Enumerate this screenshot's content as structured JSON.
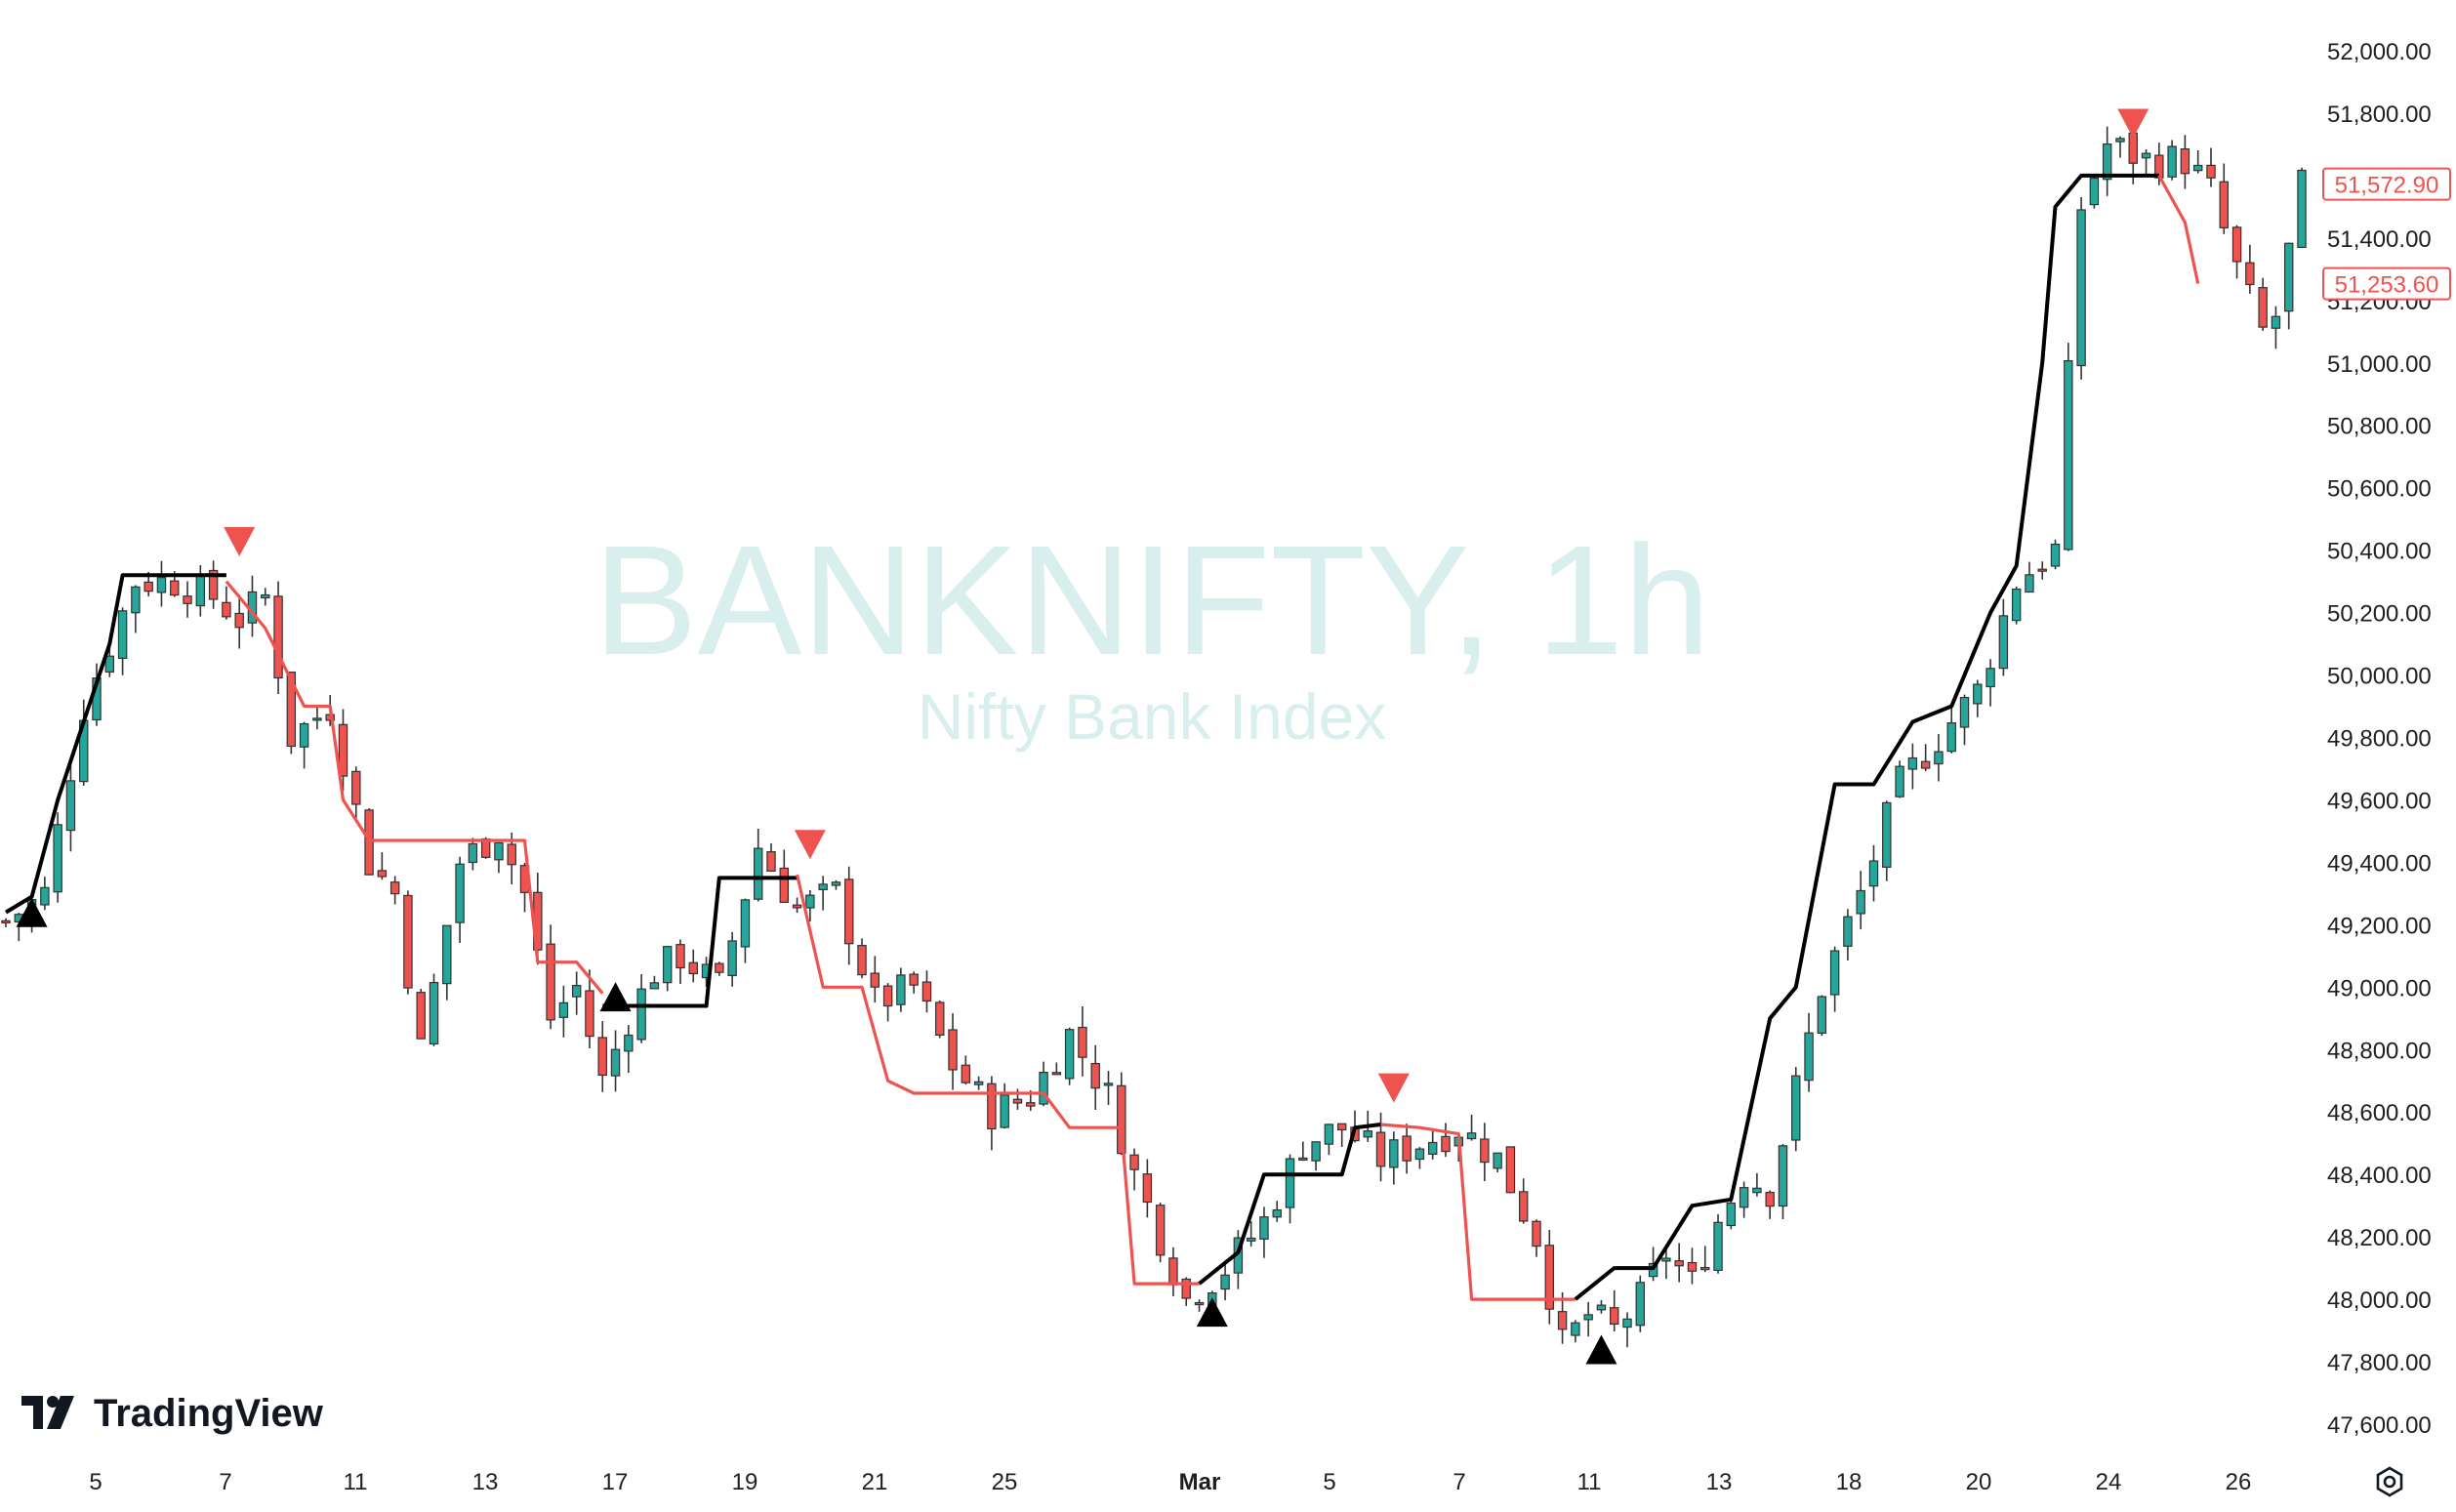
{
  "watermark": {
    "title": "BANKNIFTY, 1h",
    "subtitle": "Nifty Bank Index"
  },
  "brand": {
    "name": "TradingView",
    "icon": "tradingview-logo-icon"
  },
  "settings_icon": "gear-icon",
  "colors": {
    "up": "#26a69a",
    "down": "#ef5350",
    "wick": "#333333",
    "trail_long": "#000000",
    "trail_short": "#ef5350",
    "watermark": "#d9efed",
    "price_label": "#ef5350"
  },
  "chart_data": {
    "type": "candlestick",
    "title": "BANKNIFTY, 1h",
    "subtitle": "Nifty Bank Index",
    "timeframe": "1h",
    "ylim": [
      47550,
      52060
    ],
    "y_ticks": [
      "52,000.00",
      "51,800.00",
      "51,600.00",
      "51,400.00",
      "51,200.00",
      "51,000.00",
      "50,800.00",
      "50,600.00",
      "50,400.00",
      "50,200.00",
      "50,000.00",
      "49,800.00",
      "49,600.00",
      "49,400.00",
      "49,200.00",
      "49,000.00",
      "48,800.00",
      "48,600.00",
      "48,400.00",
      "48,200.00",
      "48,000.00",
      "47,800.00",
      "47,600.00"
    ],
    "x_ticks": [
      "5",
      "7",
      "11",
      "13",
      "17",
      "19",
      "21",
      "25",
      "Mar",
      "5",
      "7",
      "11",
      "13",
      "18",
      "20",
      "24",
      "26"
    ],
    "bar_count": 178,
    "price_labels": [
      "51,572.90",
      "51,253.60"
    ],
    "close_points": [
      [
        0,
        49210
      ],
      [
        3,
        49300
      ],
      [
        6,
        49900
      ],
      [
        10,
        50300
      ],
      [
        13,
        50300
      ],
      [
        16,
        50250
      ],
      [
        18,
        50180
      ],
      [
        20,
        50250
      ],
      [
        22,
        49800
      ],
      [
        25,
        49900
      ],
      [
        28,
        49400
      ],
      [
        30,
        49300
      ],
      [
        32,
        48800
      ],
      [
        35,
        49400
      ],
      [
        38,
        49500
      ],
      [
        40,
        49300
      ],
      [
        42,
        48900
      ],
      [
        44,
        49000
      ],
      [
        46,
        48700
      ],
      [
        48,
        48900
      ],
      [
        50,
        49050
      ],
      [
        52,
        49100
      ],
      [
        55,
        49000
      ],
      [
        58,
        49450
      ],
      [
        61,
        49250
      ],
      [
        64,
        49300
      ],
      [
        67,
        48950
      ],
      [
        70,
        49000
      ],
      [
        73,
        48750
      ],
      [
        76,
        48600
      ],
      [
        79,
        48650
      ],
      [
        82,
        48850
      ],
      [
        85,
        48650
      ],
      [
        87,
        48400
      ],
      [
        89,
        48200
      ],
      [
        91,
        48000
      ],
      [
        94,
        48100
      ],
      [
        97,
        48250
      ],
      [
        100,
        48500
      ],
      [
        103,
        48550
      ],
      [
        106,
        48450
      ],
      [
        109,
        48500
      ],
      [
        112,
        48550
      ],
      [
        115,
        48450
      ],
      [
        118,
        48200
      ],
      [
        120,
        47850
      ],
      [
        122,
        47950
      ],
      [
        124,
        47900
      ],
      [
        126,
        48000
      ],
      [
        128,
        48150
      ],
      [
        130,
        48050
      ],
      [
        132,
        48250
      ],
      [
        134,
        48400
      ],
      [
        136,
        48350
      ],
      [
        140,
        49000
      ],
      [
        143,
        49300
      ],
      [
        146,
        49650
      ],
      [
        149,
        49800
      ],
      [
        152,
        49950
      ],
      [
        155,
        50300
      ],
      [
        158,
        50400
      ],
      [
        160,
        51500
      ],
      [
        162,
        51700
      ],
      [
        165,
        51650
      ],
      [
        168,
        51650
      ],
      [
        170,
        51550
      ],
      [
        172,
        51300
      ],
      [
        174,
        51100
      ],
      [
        175,
        51150
      ],
      [
        177,
        51560
      ]
    ],
    "trail_segments": [
      {
        "trend": "up",
        "points": [
          [
            0,
            49240
          ],
          [
            2,
            49290
          ],
          [
            4,
            49600
          ],
          [
            6,
            49850
          ],
          [
            8,
            50100
          ],
          [
            9,
            50320
          ],
          [
            17,
            50320
          ]
        ]
      },
      {
        "trend": "down",
        "points": [
          [
            17,
            50300
          ],
          [
            20,
            50150
          ],
          [
            23,
            49900
          ],
          [
            25,
            49900
          ],
          [
            26,
            49600
          ],
          [
            28,
            49470
          ],
          [
            33,
            49470
          ],
          [
            37,
            49470
          ],
          [
            40,
            49470
          ],
          [
            41,
            49080
          ],
          [
            44,
            49080
          ],
          [
            46,
            48980
          ]
        ]
      },
      {
        "trend": "up",
        "points": [
          [
            46,
            48940
          ],
          [
            54,
            48940
          ],
          [
            55,
            49350
          ],
          [
            61,
            49350
          ]
        ]
      },
      {
        "trend": "down",
        "points": [
          [
            61,
            49360
          ],
          [
            63,
            49000
          ],
          [
            66,
            49000
          ],
          [
            68,
            48700
          ],
          [
            70,
            48660
          ],
          [
            80,
            48660
          ],
          [
            82,
            48550
          ],
          [
            86,
            48550
          ],
          [
            87,
            48050
          ],
          [
            92,
            48050
          ]
        ]
      },
      {
        "trend": "up",
        "points": [
          [
            92,
            48050
          ],
          [
            95,
            48150
          ],
          [
            97,
            48400
          ],
          [
            103,
            48400
          ],
          [
            104,
            48550
          ],
          [
            106,
            48560
          ]
        ]
      },
      {
        "trend": "down",
        "points": [
          [
            106,
            48560
          ],
          [
            109,
            48550
          ],
          [
            112,
            48530
          ],
          [
            113,
            48000
          ],
          [
            121,
            48000
          ]
        ]
      },
      {
        "trend": "up",
        "points": [
          [
            121,
            48000
          ],
          [
            124,
            48100
          ],
          [
            127,
            48100
          ],
          [
            130,
            48300
          ],
          [
            133,
            48320
          ],
          [
            136,
            48900
          ],
          [
            138,
            49000
          ],
          [
            141,
            49650
          ],
          [
            144,
            49650
          ],
          [
            147,
            49850
          ],
          [
            150,
            49900
          ],
          [
            153,
            50200
          ],
          [
            155,
            50350
          ],
          [
            157,
            51000
          ],
          [
            158,
            51500
          ],
          [
            160,
            51600
          ],
          [
            166,
            51600
          ]
        ]
      },
      {
        "trend": "down",
        "points": [
          [
            166,
            51600
          ],
          [
            168,
            51450
          ],
          [
            169,
            51254
          ]
        ]
      }
    ],
    "signals": [
      {
        "type": "buy",
        "bar": 2,
        "price": 49330
      },
      {
        "type": "sell",
        "bar": 18,
        "price": 50330
      },
      {
        "type": "buy",
        "bar": 47,
        "price": 49060
      },
      {
        "type": "sell",
        "bar": 62,
        "price": 49360
      },
      {
        "type": "buy",
        "bar": 93,
        "price": 48050
      },
      {
        "type": "sell",
        "bar": 107,
        "price": 48580
      },
      {
        "type": "buy",
        "bar": 123,
        "price": 47930
      },
      {
        "type": "sell",
        "bar": 164,
        "price": 51670
      }
    ]
  }
}
